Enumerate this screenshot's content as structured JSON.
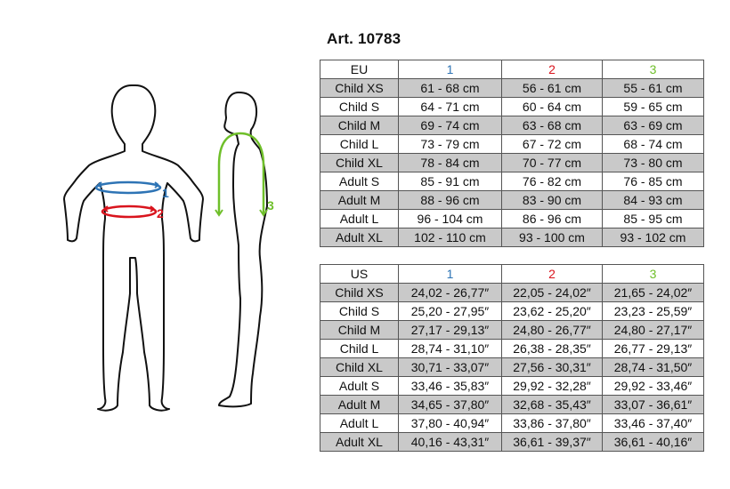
{
  "title": "Art. 10783",
  "measure_labels": [
    "1",
    "2",
    "3"
  ],
  "colors": {
    "m1": "#2e74b5",
    "m2": "#d9141d",
    "m3": "#6fbf2a",
    "shade": "#c9c9c9"
  },
  "eu_table": {
    "header": [
      "EU",
      "1",
      "2",
      "3"
    ],
    "rows": [
      [
        "Child XS",
        "61 - 68 cm",
        "56 - 61 cm",
        "55 - 61 cm"
      ],
      [
        "Child S",
        "64 - 71 cm",
        "60 - 64 cm",
        "59 - 65 cm"
      ],
      [
        "Child M",
        "69 - 74 cm",
        "63 - 68 cm",
        "63 - 69 cm"
      ],
      [
        "Child L",
        "73 - 79 cm",
        "67 - 72 cm",
        "68 - 74 cm"
      ],
      [
        "Child XL",
        "78 - 84 cm",
        "70 - 77 cm",
        "73 - 80 cm"
      ],
      [
        "Adult S",
        "85 - 91 cm",
        "76 - 82 cm",
        "76 - 85 cm"
      ],
      [
        "Adult M",
        "88 - 96 cm",
        "83 - 90 cm",
        "84 - 93 cm"
      ],
      [
        "Adult L",
        "96 - 104 cm",
        "86 - 96 cm",
        "85 - 95 cm"
      ],
      [
        "Adult XL",
        "102 - 110 cm",
        "93 - 100 cm",
        "93 - 102 cm"
      ]
    ]
  },
  "us_table": {
    "header": [
      "US",
      "1",
      "2",
      "3"
    ],
    "rows": [
      [
        "Child XS",
        "24,02 - 26,77″",
        "22,05 - 24,02″",
        "21,65 - 24,02″"
      ],
      [
        "Child S",
        "25,20 - 27,95″",
        "23,62 - 25,20″",
        "23,23 - 25,59″"
      ],
      [
        "Child M",
        "27,17 - 29,13″",
        "24,80 - 26,77″",
        "24,80 - 27,17″"
      ],
      [
        "Child L",
        "28,74 - 31,10″",
        "26,38 - 28,35″",
        "26,77 - 29,13″"
      ],
      [
        "Child XL",
        "30,71 - 33,07″",
        "27,56 - 30,31″",
        "28,74 - 31,50″"
      ],
      [
        "Adult S",
        "33,46 - 35,83″",
        "29,92 - 32,28″",
        "29,92 - 33,46″"
      ],
      [
        "Adult M",
        "34,65 - 37,80″",
        "32,68 - 35,43″",
        "33,07 - 36,61″"
      ],
      [
        "Adult L",
        "37,80 - 40,94″",
        "33,86 - 37,80″",
        "33,46 - 37,40″"
      ],
      [
        "Adult XL",
        "40,16 - 43,31″",
        "36,61 - 39,37″",
        "36,61 - 40,16″"
      ]
    ]
  }
}
